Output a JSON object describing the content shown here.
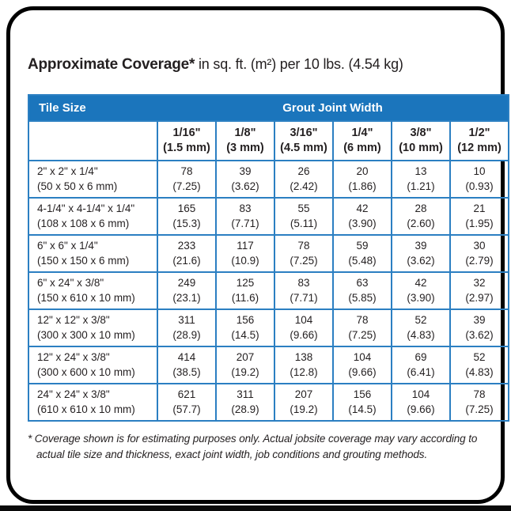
{
  "title": {
    "bold": "Approximate Coverage*",
    "rest": " in sq. ft. (m²) per 10 lbs. (4.54 kg)"
  },
  "table": {
    "header": {
      "tile_size": "Tile Size",
      "grout_joint_width": "Grout Joint Width"
    },
    "columns": [
      {
        "size": "1/16\"",
        "metric": "(1.5 mm)"
      },
      {
        "size": "1/8\"",
        "metric": "(3 mm)"
      },
      {
        "size": "3/16\"",
        "metric": "(4.5 mm)"
      },
      {
        "size": "1/4\"",
        "metric": "(6 mm)"
      },
      {
        "size": "3/8\"",
        "metric": "(10 mm)"
      },
      {
        "size": "1/2\"",
        "metric": "(12 mm)"
      }
    ],
    "rows": [
      {
        "tile": "2\" x 2\" x 1/4\"",
        "tile_metric": "(50 x 50 x 6 mm)",
        "values": [
          "78",
          "39",
          "26",
          "20",
          "13",
          "10"
        ],
        "metrics": [
          "(7.25)",
          "(3.62)",
          "(2.42)",
          "(1.86)",
          "(1.21)",
          "(0.93)"
        ]
      },
      {
        "tile": "4-1/4\" x 4-1/4\" x 1/4\"",
        "tile_metric": "(108 x 108 x 6 mm)",
        "values": [
          "165",
          "83",
          "55",
          "42",
          "28",
          "21"
        ],
        "metrics": [
          "(15.3)",
          "(7.71)",
          "(5.11)",
          "(3.90)",
          "(2.60)",
          "(1.95)"
        ]
      },
      {
        "tile": "6\" x 6\" x 1/4\"",
        "tile_metric": "(150 x 150 x 6 mm)",
        "values": [
          "233",
          "117",
          "78",
          "59",
          "39",
          "30"
        ],
        "metrics": [
          "(21.6)",
          "(10.9)",
          "(7.25)",
          "(5.48)",
          "(3.62)",
          "(2.79)"
        ]
      },
      {
        "tile": "6\" x 24\" x 3/8\"",
        "tile_metric": "(150 x 610 x 10 mm)",
        "values": [
          "249",
          "125",
          "83",
          "63",
          "42",
          "32"
        ],
        "metrics": [
          "(23.1)",
          "(11.6)",
          "(7.71)",
          "(5.85)",
          "(3.90)",
          "(2.97)"
        ]
      },
      {
        "tile": "12\" x 12\" x 3/8\"",
        "tile_metric": "(300 x 300 x 10 mm)",
        "values": [
          "311",
          "156",
          "104",
          "78",
          "52",
          "39"
        ],
        "metrics": [
          "(28.9)",
          "(14.5)",
          "(9.66)",
          "(7.25)",
          "(4.83)",
          "(3.62)"
        ]
      },
      {
        "tile": "12\" x 24\" x 3/8\"",
        "tile_metric": "(300 x 600 x 10 mm)",
        "values": [
          "414",
          "207",
          "138",
          "104",
          "69",
          "52"
        ],
        "metrics": [
          "(38.5)",
          "(19.2)",
          "(12.8)",
          "(9.66)",
          "(6.41)",
          "(4.83)"
        ]
      },
      {
        "tile": "24\" x 24\" x 3/8\"",
        "tile_metric": "(610 x 610 x 10 mm)",
        "values": [
          "621",
          "311",
          "207",
          "156",
          "104",
          "78"
        ],
        "metrics": [
          "(57.7)",
          "(28.9)",
          "(19.2)",
          "(14.5)",
          "(9.66)",
          "(7.25)"
        ]
      }
    ]
  },
  "footnote": "* Coverage shown is for estimating purposes only. Actual jobsite coverage may vary according to actual tile size and thickness, exact joint width, job conditions and grouting methods.",
  "colors": {
    "header_blue": "#1b75bc",
    "border_blue": "#2b7fc2",
    "text": "#231f20",
    "frame_black": "#000000"
  }
}
